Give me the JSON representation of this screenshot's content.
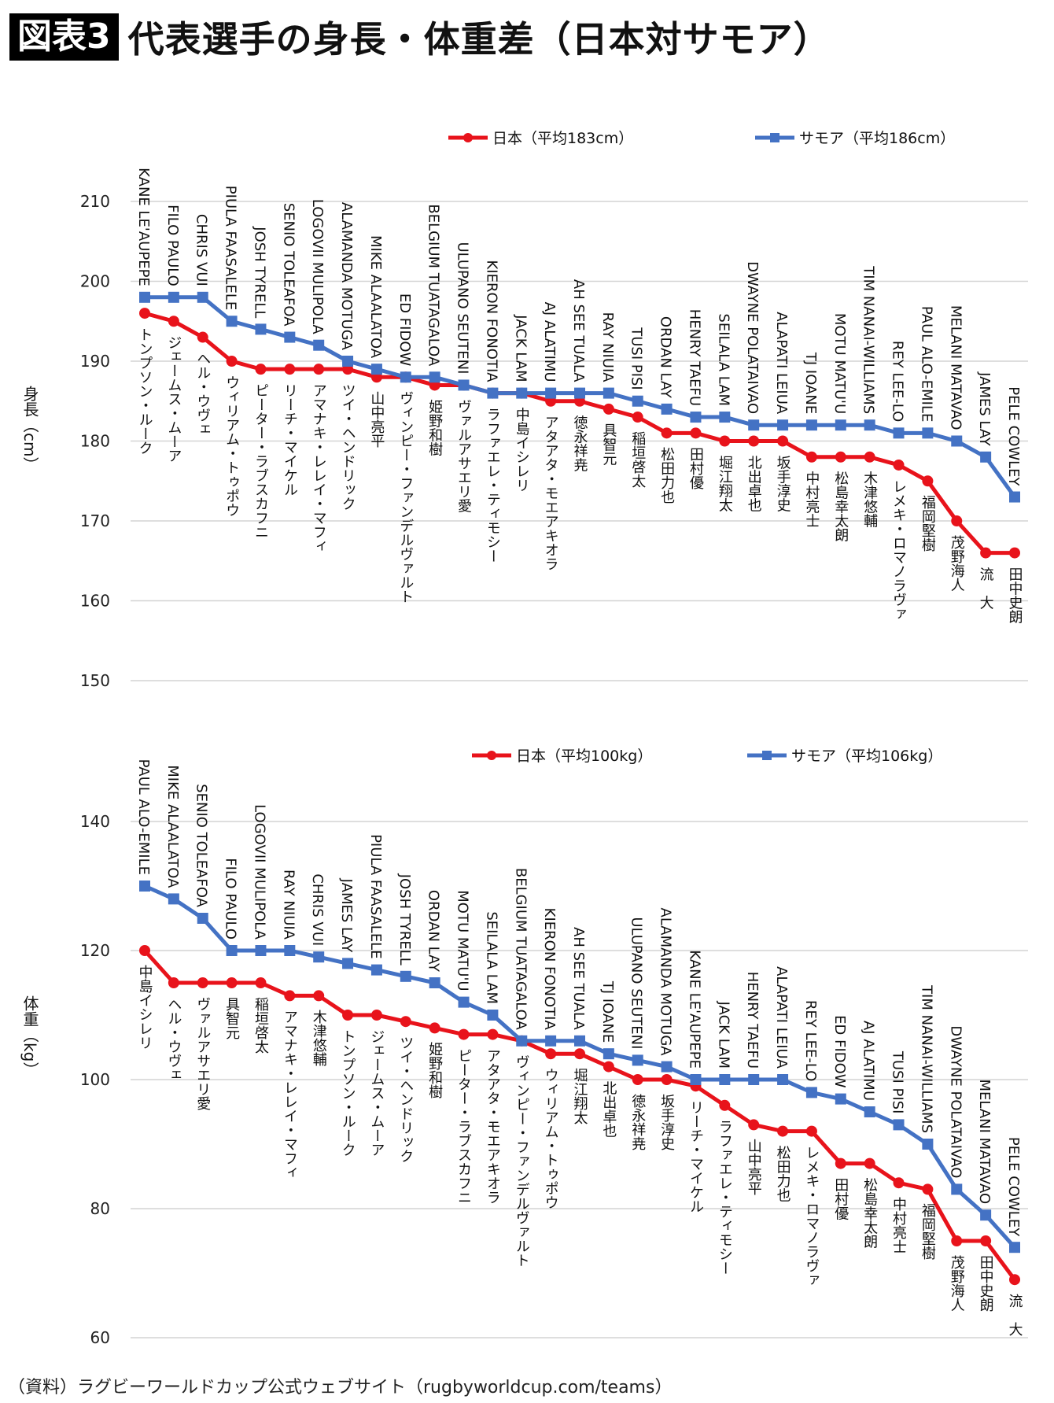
{
  "header": {
    "badge": "図表3",
    "title": "代表選手の身長・体重差（日本対サモア）"
  },
  "source": "（資料）ラグビーワールドカップ公式ウェブサイト（rugbyworldcup.com/teams）",
  "colors": {
    "japan": "#e8131b",
    "samoa": "#4472c4",
    "grid": "#d4d4d4"
  },
  "chart_data": [
    {
      "type": "line",
      "title": "身長",
      "ylabel": "身長（cm）",
      "xlabel": "",
      "ylim": [
        150,
        210
      ],
      "yticks": [
        150,
        160,
        170,
        180,
        190,
        200,
        210
      ],
      "grid": true,
      "legend_position": "top",
      "series": [
        {
          "name": "日本（平均183cm）",
          "color": "#e8131b",
          "marker": "circle",
          "labels": [
            "トンプソン・ルーク",
            "ジェームス・ムーア",
            "ヘル・ウヴェ",
            "ウィリアム・トゥポウ",
            "ピーター・ラブスカフニ",
            "リーチ・マイケル",
            "アマナキ・レレイ・マフィ",
            "ツイ・ヘンドリック",
            "山中亮平",
            "ヴィンピー・ファンデルヴァルト",
            "姫野和樹",
            "ヴァルアサエリ愛",
            "ラファエレ・ティモシー",
            "中島イシレリ",
            "アタアタ・モエアキオラ",
            "徳永祥尭",
            "具智元",
            "稲垣啓太",
            "松田力也",
            "田村優",
            "堀江翔太",
            "北出卓也",
            "坂手淳史",
            "中村亮士",
            "松島幸太朗",
            "木津悠輔",
            "レメキ・ロマノラヴァ",
            "福岡堅樹",
            "茂野海人",
            "流　大",
            "田中史朗"
          ],
          "values": [
            196,
            195,
            193,
            190,
            189,
            189,
            189,
            189,
            188,
            188,
            187,
            187,
            186,
            186,
            185,
            185,
            184,
            183,
            181,
            181,
            180,
            180,
            180,
            178,
            178,
            178,
            177,
            175,
            170,
            166,
            166
          ]
        },
        {
          "name": "サモア（平均186cm）",
          "color": "#4472c4",
          "marker": "square",
          "labels": [
            "KANE LE'AUPEPE",
            "FILO PAULO",
            "CHRIS VUI",
            "PIULA FAASALELE",
            "JOSH TYRELL",
            "SENIO TOLEAFOA",
            "LOGOVII MULIPOLA",
            "ALAMANDA MOTUGA",
            "MIKE ALAALATOA",
            "ED FIDOW",
            "BELGIUM TUATAGALOA",
            "ULUPANO SEUTENI",
            "KIERON FONOTIA",
            "JACK LAM",
            "AJ ALATIMU",
            "AH SEE TUALA",
            "RAY NIUIA",
            "TUSI PISI",
            "ORDAN LAY",
            "HENRY TAEFU",
            "SEILALA LAM",
            "DWAYNE POLATAIVAO",
            "ALAPATI LEIUA",
            "TJ IOANE",
            "MOTU MATU'U",
            "TIM NANAI-WILLIAMS",
            "REY LEE-LO",
            "PAUL ALO-EMILE",
            "MELANI MATAVAO",
            "JAMES LAY",
            "PELE COWLEY"
          ],
          "values": [
            198,
            198,
            198,
            195,
            194,
            193,
            192,
            190,
            189,
            188,
            188,
            187,
            186,
            186,
            186,
            186,
            186,
            185,
            184,
            183,
            183,
            182,
            182,
            182,
            182,
            182,
            181,
            181,
            180,
            178,
            173
          ]
        }
      ]
    },
    {
      "type": "line",
      "title": "体重",
      "ylabel": "体重（kg）",
      "xlabel": "",
      "ylim": [
        60,
        140
      ],
      "yticks": [
        60,
        80,
        100,
        120,
        140
      ],
      "grid": true,
      "legend_position": "top",
      "series": [
        {
          "name": "日本（平均100kg）",
          "color": "#e8131b",
          "marker": "circle",
          "labels": [
            "中島イシレリ",
            "ヘル・ウヴェ",
            "ヴァルアサエリ愛",
            "具智元",
            "稲垣啓太",
            "アマナキ・レレイ・マフィ",
            "木津悠輔",
            "トンプソン・ルーク",
            "ジェームス・ムーア",
            "ツイ・ヘンドリック",
            "姫野和樹",
            "ピーター・ラブスカフニ",
            "アタアタ・モエアキオラ",
            "ヴィンピー・ファンデルヴァルト",
            "ウィリアム・トゥポウ",
            "堀江翔太",
            "北出卓也",
            "徳永祥尭",
            "坂手淳史",
            "リーチ・マイケル",
            "ラファエレ・ティモシー",
            "山中亮平",
            "松田力也",
            "レメキ・ロマノラヴァ",
            "田村優",
            "松島幸太朗",
            "中村亮士",
            "福岡堅樹",
            "茂野海人",
            "田中史朗",
            "流　大"
          ],
          "values": [
            120,
            115,
            115,
            115,
            115,
            113,
            113,
            110,
            110,
            109,
            108,
            107,
            107,
            106,
            104,
            104,
            102,
            100,
            100,
            99,
            96,
            93,
            92,
            92,
            87,
            87,
            84,
            83,
            75,
            75,
            69
          ]
        },
        {
          "name": "サモア（平均106kg）",
          "color": "#4472c4",
          "marker": "square",
          "labels": [
            "PAUL ALO-EMILE",
            "MIKE ALAALATOA",
            "SENIO TOLEAFOA",
            "FILO PAULO",
            "LOGOVII MULIPOLA",
            "RAY NIUIA",
            "CHRIS VUI",
            "JAMES LAY",
            "PIULA FAASALELE",
            "JOSH TYRELL",
            "ORDAN LAY",
            "MOTU MATU'U",
            "SEILALA LAM",
            "BELGIUM TUATAGALOA",
            "KIERON FONOTIA",
            "AH SEE TUALA",
            "TJ IOANE",
            "ULUPANO SEUTENI",
            "ALAMANDA MOTUGA",
            "KANE LE'AUPEPE",
            "JACK LAM",
            "HENRY TAEFU",
            "ALAPATI LEIUA",
            "REY LEE-LO",
            "ED FIDOW",
            "AJ ALATIMU",
            "TUSI PISI",
            "TIM NANAI-WILLIAMS",
            "DWAYNE POLATAIVAO",
            "MELANI MATAVAO",
            "PELE COWLEY"
          ],
          "values": [
            130,
            128,
            125,
            120,
            120,
            120,
            119,
            118,
            117,
            116,
            115,
            112,
            110,
            106,
            106,
            106,
            104,
            103,
            102,
            100,
            100,
            100,
            100,
            98,
            97,
            95,
            93,
            90,
            83,
            79,
            74
          ]
        }
      ]
    }
  ]
}
